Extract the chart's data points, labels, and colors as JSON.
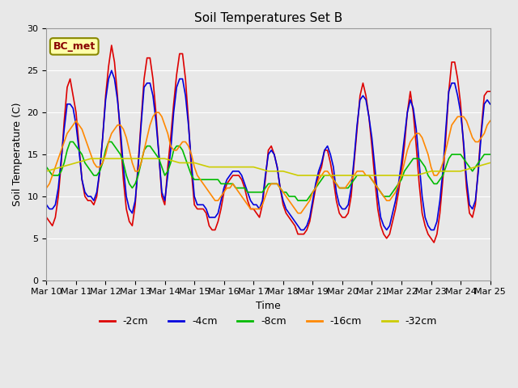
{
  "title": "Soil Temperatures Set B",
  "xlabel": "Time",
  "ylabel": "Soil Temperature (C)",
  "annotation": "BC_met",
  "ylim": [
    0,
    30
  ],
  "xlim": [
    0,
    15
  ],
  "xtick_labels": [
    "Mar 10",
    "Mar 11",
    "Mar 12",
    "Mar 13",
    "Mar 14",
    "Mar 15",
    "Mar 16",
    "Mar 17",
    "Mar 18",
    "Mar 19",
    "Mar 20",
    "Mar 21",
    "Mar 22",
    "Mar 23",
    "Mar 24",
    "Mar 25"
  ],
  "series": {
    "-2cm": {
      "color": "#dd0000",
      "lw": 1.2,
      "x": [
        0.0,
        0.1,
        0.2,
        0.3,
        0.4,
        0.5,
        0.6,
        0.7,
        0.8,
        0.9,
        1.0,
        1.1,
        1.2,
        1.3,
        1.4,
        1.5,
        1.6,
        1.7,
        1.8,
        1.9,
        2.0,
        2.1,
        2.2,
        2.3,
        2.4,
        2.5,
        2.6,
        2.7,
        2.8,
        2.9,
        3.0,
        3.1,
        3.2,
        3.3,
        3.4,
        3.5,
        3.6,
        3.7,
        3.8,
        3.9,
        4.0,
        4.1,
        4.2,
        4.3,
        4.4,
        4.5,
        4.6,
        4.7,
        4.8,
        4.9,
        5.0,
        5.1,
        5.2,
        5.3,
        5.4,
        5.5,
        5.6,
        5.7,
        5.8,
        5.9,
        6.0,
        6.1,
        6.2,
        6.3,
        6.4,
        6.5,
        6.6,
        6.7,
        6.8,
        6.9,
        7.0,
        7.1,
        7.2,
        7.3,
        7.4,
        7.5,
        7.6,
        7.7,
        7.8,
        7.9,
        8.0,
        8.1,
        8.2,
        8.3,
        8.4,
        8.5,
        8.6,
        8.7,
        8.8,
        8.9,
        9.0,
        9.1,
        9.2,
        9.3,
        9.4,
        9.5,
        9.6,
        9.7,
        9.8,
        9.9,
        10.0,
        10.1,
        10.2,
        10.3,
        10.4,
        10.5,
        10.6,
        10.7,
        10.8,
        10.9,
        11.0,
        11.1,
        11.2,
        11.3,
        11.4,
        11.5,
        11.6,
        11.7,
        11.8,
        11.9,
        12.0,
        12.1,
        12.2,
        12.3,
        12.4,
        12.5,
        12.6,
        12.7,
        12.8,
        12.9,
        13.0,
        13.1,
        13.2,
        13.3,
        13.4,
        13.5,
        13.6,
        13.7,
        13.8,
        13.9,
        14.0,
        14.1,
        14.2,
        14.3,
        14.4,
        14.5,
        14.6,
        14.7,
        14.8,
        14.9,
        15.0
      ],
      "y": [
        7.5,
        7.0,
        6.5,
        7.5,
        10.0,
        14.0,
        19.0,
        23.0,
        24.0,
        22.0,
        20.0,
        16.0,
        12.0,
        10.0,
        9.5,
        9.5,
        9.0,
        10.0,
        13.0,
        17.0,
        22.0,
        25.5,
        28.0,
        26.0,
        22.0,
        17.0,
        12.0,
        8.5,
        7.0,
        6.5,
        9.0,
        14.0,
        19.0,
        24.0,
        26.5,
        26.5,
        24.0,
        20.0,
        15.0,
        10.0,
        9.0,
        13.5,
        17.0,
        21.0,
        24.5,
        27.0,
        27.0,
        24.0,
        19.0,
        13.0,
        9.0,
        8.5,
        8.5,
        8.5,
        8.0,
        6.5,
        6.0,
        6.0,
        7.0,
        8.5,
        10.5,
        11.5,
        12.0,
        12.5,
        12.5,
        12.5,
        12.0,
        11.0,
        9.5,
        8.5,
        8.5,
        8.0,
        7.5,
        9.0,
        12.0,
        15.5,
        16.0,
        15.0,
        13.5,
        11.0,
        9.0,
        8.0,
        7.5,
        7.0,
        6.5,
        5.5,
        5.5,
        5.5,
        6.0,
        7.0,
        9.0,
        11.0,
        12.5,
        13.5,
        15.5,
        15.5,
        14.0,
        12.0,
        9.5,
        8.0,
        7.5,
        7.5,
        8.0,
        10.0,
        14.0,
        18.0,
        22.0,
        23.5,
        22.0,
        19.5,
        16.0,
        12.0,
        8.5,
        6.5,
        5.5,
        5.0,
        5.5,
        7.0,
        8.5,
        10.5,
        13.0,
        16.0,
        20.0,
        22.5,
        20.0,
        16.0,
        11.5,
        8.0,
        6.5,
        5.5,
        5.0,
        4.5,
        5.5,
        8.0,
        12.0,
        17.0,
        22.5,
        26.0,
        26.0,
        24.0,
        21.0,
        16.0,
        11.0,
        8.0,
        7.5,
        9.0,
        13.5,
        18.0,
        22.0,
        22.5,
        22.5
      ]
    },
    "-4cm": {
      "color": "#0000dd",
      "lw": 1.2,
      "x": [
        0.0,
        0.1,
        0.2,
        0.3,
        0.4,
        0.5,
        0.6,
        0.7,
        0.8,
        0.9,
        1.0,
        1.1,
        1.2,
        1.3,
        1.4,
        1.5,
        1.6,
        1.7,
        1.8,
        1.9,
        2.0,
        2.1,
        2.2,
        2.3,
        2.4,
        2.5,
        2.6,
        2.7,
        2.8,
        2.9,
        3.0,
        3.1,
        3.2,
        3.3,
        3.4,
        3.5,
        3.6,
        3.7,
        3.8,
        3.9,
        4.0,
        4.1,
        4.2,
        4.3,
        4.4,
        4.5,
        4.6,
        4.7,
        4.8,
        4.9,
        5.0,
        5.1,
        5.2,
        5.3,
        5.4,
        5.5,
        5.6,
        5.7,
        5.8,
        5.9,
        6.0,
        6.1,
        6.2,
        6.3,
        6.4,
        6.5,
        6.6,
        6.7,
        6.8,
        6.9,
        7.0,
        7.1,
        7.2,
        7.3,
        7.4,
        7.5,
        7.6,
        7.7,
        7.8,
        7.9,
        8.0,
        8.1,
        8.2,
        8.3,
        8.4,
        8.5,
        8.6,
        8.7,
        8.8,
        8.9,
        9.0,
        9.1,
        9.2,
        9.3,
        9.4,
        9.5,
        9.6,
        9.7,
        9.8,
        9.9,
        10.0,
        10.1,
        10.2,
        10.3,
        10.4,
        10.5,
        10.6,
        10.7,
        10.8,
        10.9,
        11.0,
        11.1,
        11.2,
        11.3,
        11.4,
        11.5,
        11.6,
        11.7,
        11.8,
        11.9,
        12.0,
        12.1,
        12.2,
        12.3,
        12.4,
        12.5,
        12.6,
        12.7,
        12.8,
        12.9,
        13.0,
        13.1,
        13.2,
        13.3,
        13.4,
        13.5,
        13.6,
        13.7,
        13.8,
        13.9,
        14.0,
        14.1,
        14.2,
        14.3,
        14.4,
        14.5,
        14.6,
        14.7,
        14.8,
        14.9,
        15.0
      ],
      "y": [
        9.0,
        8.5,
        8.5,
        9.0,
        11.0,
        14.5,
        18.0,
        21.0,
        21.0,
        20.5,
        18.5,
        15.5,
        12.0,
        10.5,
        10.0,
        10.0,
        9.5,
        10.5,
        13.0,
        17.0,
        21.5,
        24.0,
        25.0,
        24.0,
        21.5,
        18.0,
        13.5,
        10.0,
        8.5,
        8.0,
        9.5,
        13.5,
        18.5,
        23.0,
        23.5,
        23.5,
        22.0,
        19.0,
        15.0,
        10.5,
        9.5,
        12.5,
        15.5,
        20.0,
        23.0,
        24.0,
        24.0,
        22.0,
        18.5,
        14.0,
        10.0,
        9.0,
        9.0,
        9.0,
        8.5,
        7.5,
        7.5,
        7.5,
        8.0,
        9.5,
        11.0,
        12.0,
        12.5,
        13.0,
        13.0,
        13.0,
        12.5,
        11.5,
        10.5,
        9.5,
        9.0,
        9.0,
        8.5,
        9.5,
        12.5,
        15.0,
        15.5,
        15.0,
        13.5,
        11.0,
        9.5,
        8.5,
        8.0,
        7.5,
        7.0,
        6.5,
        6.0,
        6.0,
        6.5,
        7.5,
        9.5,
        11.5,
        13.0,
        14.0,
        15.5,
        16.0,
        15.0,
        13.5,
        10.5,
        9.0,
        8.5,
        8.5,
        9.0,
        11.0,
        14.5,
        18.5,
        21.5,
        22.0,
        21.5,
        19.5,
        17.0,
        13.5,
        10.0,
        7.5,
        6.5,
        6.0,
        6.5,
        8.0,
        9.5,
        11.5,
        14.0,
        17.0,
        20.0,
        21.5,
        20.5,
        18.0,
        14.0,
        10.0,
        7.5,
        6.5,
        6.0,
        6.0,
        7.0,
        9.5,
        13.0,
        18.0,
        22.5,
        23.5,
        23.5,
        22.0,
        20.0,
        16.5,
        12.0,
        9.0,
        8.5,
        9.5,
        13.0,
        17.5,
        21.0,
        21.5,
        21.0
      ]
    },
    "-8cm": {
      "color": "#00bb00",
      "lw": 1.2,
      "x": [
        0.0,
        0.1,
        0.2,
        0.3,
        0.4,
        0.5,
        0.6,
        0.7,
        0.8,
        0.9,
        1.0,
        1.1,
        1.2,
        1.3,
        1.4,
        1.5,
        1.6,
        1.7,
        1.8,
        1.9,
        2.0,
        2.1,
        2.2,
        2.3,
        2.4,
        2.5,
        2.6,
        2.7,
        2.8,
        2.9,
        3.0,
        3.1,
        3.2,
        3.3,
        3.4,
        3.5,
        3.6,
        3.7,
        3.8,
        3.9,
        4.0,
        4.1,
        4.2,
        4.3,
        4.4,
        4.5,
        4.6,
        4.7,
        4.8,
        4.9,
        5.0,
        5.1,
        5.2,
        5.3,
        5.4,
        5.5,
        5.6,
        5.7,
        5.8,
        5.9,
        6.0,
        6.1,
        6.2,
        6.3,
        6.4,
        6.5,
        6.6,
        6.7,
        6.8,
        6.9,
        7.0,
        7.1,
        7.2,
        7.3,
        7.4,
        7.5,
        7.6,
        7.7,
        7.8,
        7.9,
        8.0,
        8.1,
        8.2,
        8.3,
        8.4,
        8.5,
        8.6,
        8.7,
        8.8,
        8.9,
        9.0,
        9.1,
        9.2,
        9.3,
        9.4,
        9.5,
        9.6,
        9.7,
        9.8,
        9.9,
        10.0,
        10.1,
        10.2,
        10.3,
        10.4,
        10.5,
        10.6,
        10.7,
        10.8,
        10.9,
        11.0,
        11.1,
        11.2,
        11.3,
        11.4,
        11.5,
        11.6,
        11.7,
        11.8,
        11.9,
        12.0,
        12.1,
        12.2,
        12.3,
        12.4,
        12.5,
        12.6,
        12.7,
        12.8,
        12.9,
        13.0,
        13.1,
        13.2,
        13.3,
        13.4,
        13.5,
        13.6,
        13.7,
        13.8,
        13.9,
        14.0,
        14.1,
        14.2,
        14.3,
        14.4,
        14.5,
        14.6,
        14.7,
        14.8,
        14.9,
        15.0
      ],
      "y": [
        13.5,
        13.0,
        12.5,
        12.5,
        12.5,
        13.0,
        14.0,
        15.5,
        16.5,
        16.5,
        16.0,
        15.5,
        15.0,
        14.0,
        13.5,
        13.0,
        12.5,
        12.5,
        13.0,
        14.0,
        15.5,
        16.5,
        16.5,
        16.0,
        15.5,
        15.0,
        14.0,
        12.5,
        11.5,
        11.0,
        11.5,
        12.5,
        14.0,
        15.5,
        16.0,
        16.0,
        15.5,
        15.0,
        14.5,
        13.5,
        12.5,
        13.0,
        14.0,
        15.5,
        16.0,
        16.0,
        15.5,
        14.5,
        13.5,
        12.5,
        12.0,
        12.0,
        12.0,
        12.0,
        12.0,
        12.0,
        12.0,
        12.0,
        12.0,
        11.5,
        11.5,
        11.5,
        11.5,
        11.5,
        11.0,
        11.0,
        11.0,
        11.0,
        10.5,
        10.5,
        10.5,
        10.5,
        10.5,
        10.5,
        11.0,
        11.5,
        11.5,
        11.5,
        11.5,
        11.0,
        10.5,
        10.5,
        10.0,
        10.0,
        10.0,
        9.5,
        9.5,
        9.5,
        9.5,
        10.0,
        10.5,
        11.0,
        11.5,
        12.0,
        12.5,
        12.5,
        12.5,
        12.0,
        11.5,
        11.0,
        11.0,
        11.0,
        11.0,
        11.5,
        12.0,
        12.5,
        12.5,
        12.5,
        12.5,
        12.5,
        12.0,
        11.5,
        11.0,
        10.5,
        10.0,
        10.0,
        10.0,
        10.5,
        11.0,
        11.5,
        12.0,
        13.0,
        13.5,
        14.0,
        14.5,
        14.5,
        14.5,
        14.0,
        13.5,
        12.5,
        12.0,
        11.5,
        11.5,
        12.0,
        12.5,
        13.5,
        14.5,
        15.0,
        15.0,
        15.0,
        15.0,
        14.5,
        14.0,
        13.5,
        13.0,
        13.5,
        14.0,
        14.5,
        15.0,
        15.0,
        15.0
      ]
    },
    "-16cm": {
      "color": "#ff8800",
      "lw": 1.2,
      "x": [
        0.0,
        0.1,
        0.2,
        0.3,
        0.4,
        0.5,
        0.6,
        0.7,
        0.8,
        0.9,
        1.0,
        1.1,
        1.2,
        1.3,
        1.4,
        1.5,
        1.6,
        1.7,
        1.8,
        1.9,
        2.0,
        2.1,
        2.2,
        2.3,
        2.4,
        2.5,
        2.6,
        2.7,
        2.8,
        2.9,
        3.0,
        3.1,
        3.2,
        3.3,
        3.4,
        3.5,
        3.6,
        3.7,
        3.8,
        3.9,
        4.0,
        4.1,
        4.2,
        4.3,
        4.4,
        4.5,
        4.6,
        4.7,
        4.8,
        4.9,
        5.0,
        5.1,
        5.2,
        5.3,
        5.4,
        5.5,
        5.6,
        5.7,
        5.8,
        5.9,
        6.0,
        6.1,
        6.2,
        6.3,
        6.4,
        6.5,
        6.6,
        6.7,
        6.8,
        6.9,
        7.0,
        7.1,
        7.2,
        7.3,
        7.4,
        7.5,
        7.6,
        7.7,
        7.8,
        7.9,
        8.0,
        8.1,
        8.2,
        8.3,
        8.4,
        8.5,
        8.6,
        8.7,
        8.8,
        8.9,
        9.0,
        9.1,
        9.2,
        9.3,
        9.4,
        9.5,
        9.6,
        9.7,
        9.8,
        9.9,
        10.0,
        10.1,
        10.2,
        10.3,
        10.4,
        10.5,
        10.6,
        10.7,
        10.8,
        10.9,
        11.0,
        11.1,
        11.2,
        11.3,
        11.4,
        11.5,
        11.6,
        11.7,
        11.8,
        11.9,
        12.0,
        12.1,
        12.2,
        12.3,
        12.4,
        12.5,
        12.6,
        12.7,
        12.8,
        12.9,
        13.0,
        13.1,
        13.2,
        13.3,
        13.4,
        13.5,
        13.6,
        13.7,
        13.8,
        13.9,
        14.0,
        14.1,
        14.2,
        14.3,
        14.4,
        14.5,
        14.6,
        14.7,
        14.8,
        14.9,
        15.0
      ],
      "y": [
        11.0,
        11.5,
        12.5,
        13.5,
        14.5,
        15.5,
        16.5,
        17.5,
        18.0,
        18.5,
        19.0,
        18.5,
        18.0,
        17.0,
        16.0,
        15.0,
        14.0,
        13.5,
        13.5,
        14.0,
        15.0,
        16.5,
        17.5,
        18.0,
        18.5,
        18.5,
        18.0,
        17.0,
        15.5,
        14.0,
        13.0,
        13.0,
        14.0,
        15.5,
        17.0,
        18.5,
        19.5,
        20.0,
        20.0,
        19.5,
        18.5,
        17.5,
        16.0,
        15.5,
        15.5,
        16.0,
        16.5,
        16.5,
        16.0,
        15.0,
        13.5,
        12.5,
        12.0,
        11.5,
        11.0,
        10.5,
        10.0,
        9.5,
        9.5,
        10.0,
        10.5,
        11.0,
        11.0,
        11.5,
        11.0,
        10.5,
        10.0,
        9.5,
        9.0,
        8.5,
        8.5,
        8.5,
        8.5,
        9.0,
        10.0,
        11.0,
        11.5,
        11.5,
        11.5,
        11.0,
        10.5,
        10.0,
        9.5,
        9.0,
        8.5,
        8.0,
        8.0,
        8.5,
        9.0,
        9.5,
        10.5,
        11.0,
        12.0,
        12.5,
        13.0,
        13.0,
        12.5,
        12.0,
        11.5,
        11.0,
        11.0,
        11.0,
        11.5,
        12.0,
        12.5,
        13.0,
        13.0,
        13.0,
        12.5,
        12.5,
        12.0,
        11.5,
        11.0,
        10.5,
        10.0,
        9.5,
        9.5,
        10.0,
        10.5,
        11.5,
        12.5,
        14.0,
        15.5,
        16.5,
        17.0,
        17.5,
        17.5,
        17.0,
        16.0,
        15.0,
        13.5,
        12.5,
        12.5,
        13.0,
        14.0,
        15.5,
        17.0,
        18.5,
        19.0,
        19.5,
        19.5,
        19.5,
        19.0,
        18.0,
        17.0,
        16.5,
        16.5,
        17.0,
        17.5,
        18.5,
        19.0
      ]
    },
    "-32cm": {
      "color": "#cccc00",
      "lw": 1.2,
      "x": [
        0.0,
        0.5,
        1.0,
        1.5,
        2.0,
        2.5,
        3.0,
        3.5,
        4.0,
        4.5,
        5.0,
        5.5,
        6.0,
        6.5,
        7.0,
        7.5,
        8.0,
        8.5,
        9.0,
        9.5,
        10.0,
        10.5,
        11.0,
        11.5,
        12.0,
        12.5,
        13.0,
        13.5,
        14.0,
        14.5,
        15.0
      ],
      "y": [
        13.0,
        13.5,
        14.0,
        14.5,
        14.5,
        14.5,
        14.5,
        14.5,
        14.5,
        14.0,
        14.0,
        13.5,
        13.5,
        13.5,
        13.5,
        13.0,
        13.0,
        12.5,
        12.5,
        12.5,
        12.5,
        12.5,
        12.5,
        12.5,
        12.5,
        12.5,
        13.0,
        13.0,
        13.0,
        13.5,
        14.0
      ]
    }
  },
  "bg_color": "#e8e8e8",
  "plot_bg_color": "#e8e8e8",
  "grid_color": "white",
  "annotation_box_color": "#ffffaa",
  "annotation_text_color": "#880000",
  "annotation_border_color": "#888800",
  "title_fontsize": 11,
  "axis_label_fontsize": 9,
  "tick_fontsize": 8
}
